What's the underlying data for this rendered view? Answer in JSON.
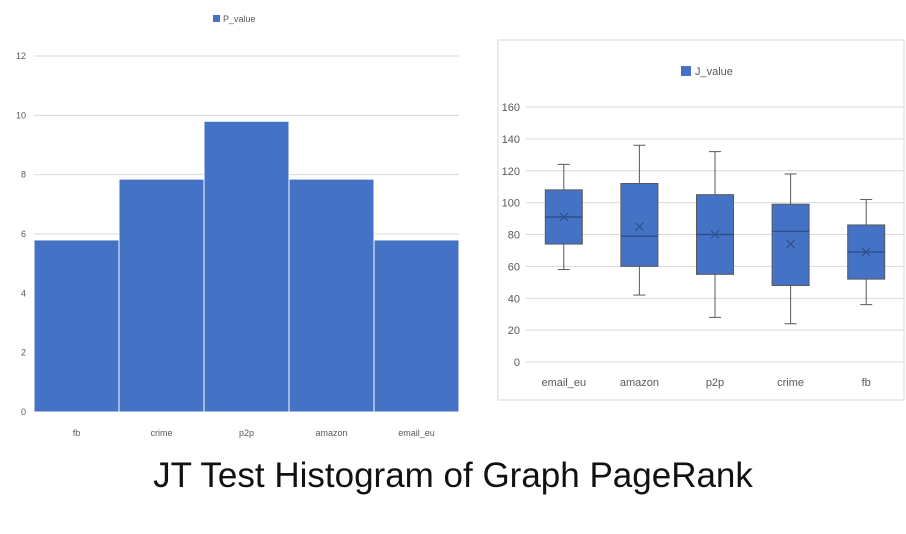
{
  "caption": "JT Test Histogram of Graph PageRank",
  "colors": {
    "bar_fill": "#4472C4",
    "bar_stroke": "#ffffff",
    "grid": "#d9d9d9",
    "axis_text": "#595959",
    "whisker": "#595959",
    "mean_marker": "#2f4f8f",
    "panel_border": "#d9d9d9"
  },
  "chart_data": [
    {
      "type": "bar",
      "title": "",
      "legend": {
        "entries": [
          "P_value"
        ],
        "position": "top"
      },
      "categories": [
        "fb",
        "crime",
        "p2p",
        "amazon",
        "email_eu"
      ],
      "series": [
        {
          "name": "P_value",
          "values": [
            5.8,
            7.85,
            9.8,
            7.85,
            5.8
          ]
        }
      ],
      "ylim": [
        0,
        12
      ],
      "yticks": [
        "0",
        "2",
        "4",
        "6",
        "8",
        "10",
        "12"
      ],
      "xlabel": "",
      "ylabel": "",
      "grid": true
    },
    {
      "type": "box",
      "title": "",
      "legend": {
        "entries": [
          "J_value"
        ],
        "position": "top"
      },
      "categories": [
        "email_eu",
        "amazon",
        "p2p",
        "crime",
        "fb"
      ],
      "series": [
        {
          "name": "J_value",
          "boxes": [
            {
              "min": 58,
              "q1": 74,
              "median": 91,
              "q3": 108,
              "max": 124,
              "mean": 91
            },
            {
              "min": 42,
              "q1": 60,
              "median": 79,
              "q3": 112,
              "max": 136,
              "mean": 85
            },
            {
              "min": 28,
              "q1": 55,
              "median": 80,
              "q3": 105,
              "max": 132,
              "mean": 80
            },
            {
              "min": 24,
              "q1": 48,
              "median": 82,
              "q3": 99,
              "max": 118,
              "mean": 74
            },
            {
              "min": 36,
              "q1": 52,
              "median": 69,
              "q3": 86,
              "max": 102,
              "mean": 69
            }
          ]
        }
      ],
      "ylim": [
        0,
        160
      ],
      "yticks": [
        "0",
        "20",
        "40",
        "60",
        "80",
        "100",
        "120",
        "140",
        "160"
      ],
      "xlabel": "",
      "ylabel": "",
      "grid": true
    }
  ]
}
